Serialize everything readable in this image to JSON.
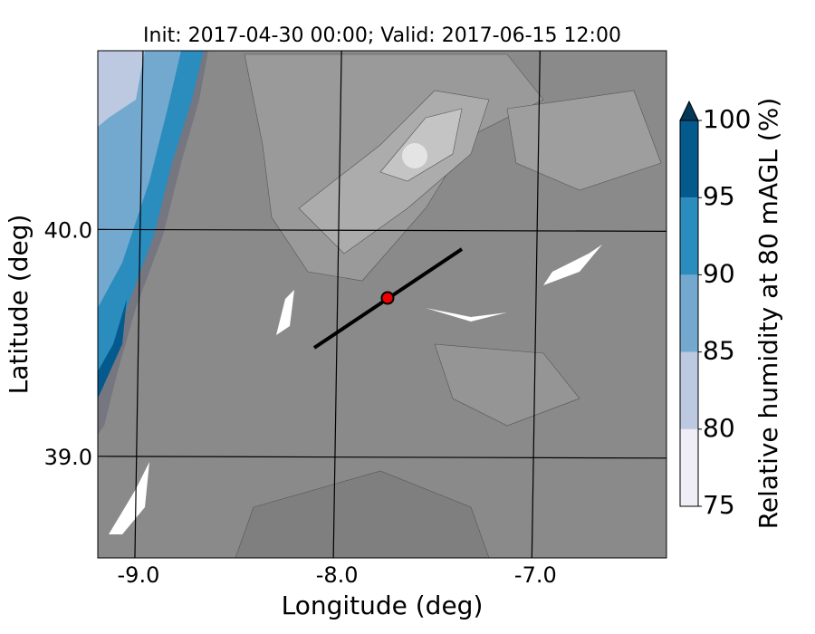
{
  "chart_data": {
    "type": "map",
    "title": "Init: 2017-04-30 00:00; Valid: 2017-06-15 12:00",
    "x_label": "Longitude (deg)",
    "y_label": "Latitude (deg)",
    "xlim": [
      -9.205,
      -6.34
    ],
    "ylim": [
      38.56,
      40.796
    ],
    "xticks": [
      {
        "value": -9,
        "label": "-9.0"
      },
      {
        "value": -8,
        "label": "-8.0"
      },
      {
        "value": -7,
        "label": "-7.0"
      }
    ],
    "yticks": [
      {
        "value": 39,
        "label": "39.0"
      },
      {
        "value": 40,
        "label": "40.0"
      }
    ],
    "grid": true,
    "colorbar": {
      "label": "Relative humidity at 80 mAGL (%)",
      "ticks": [
        75,
        80,
        85,
        90,
        95,
        100
      ],
      "colors": [
        "#efedf5",
        "#bdc9e1",
        "#74a9cf",
        "#2b8cbe",
        "#045a8d"
      ],
      "extend_color": "#023858",
      "extend": "max"
    }
  }
}
